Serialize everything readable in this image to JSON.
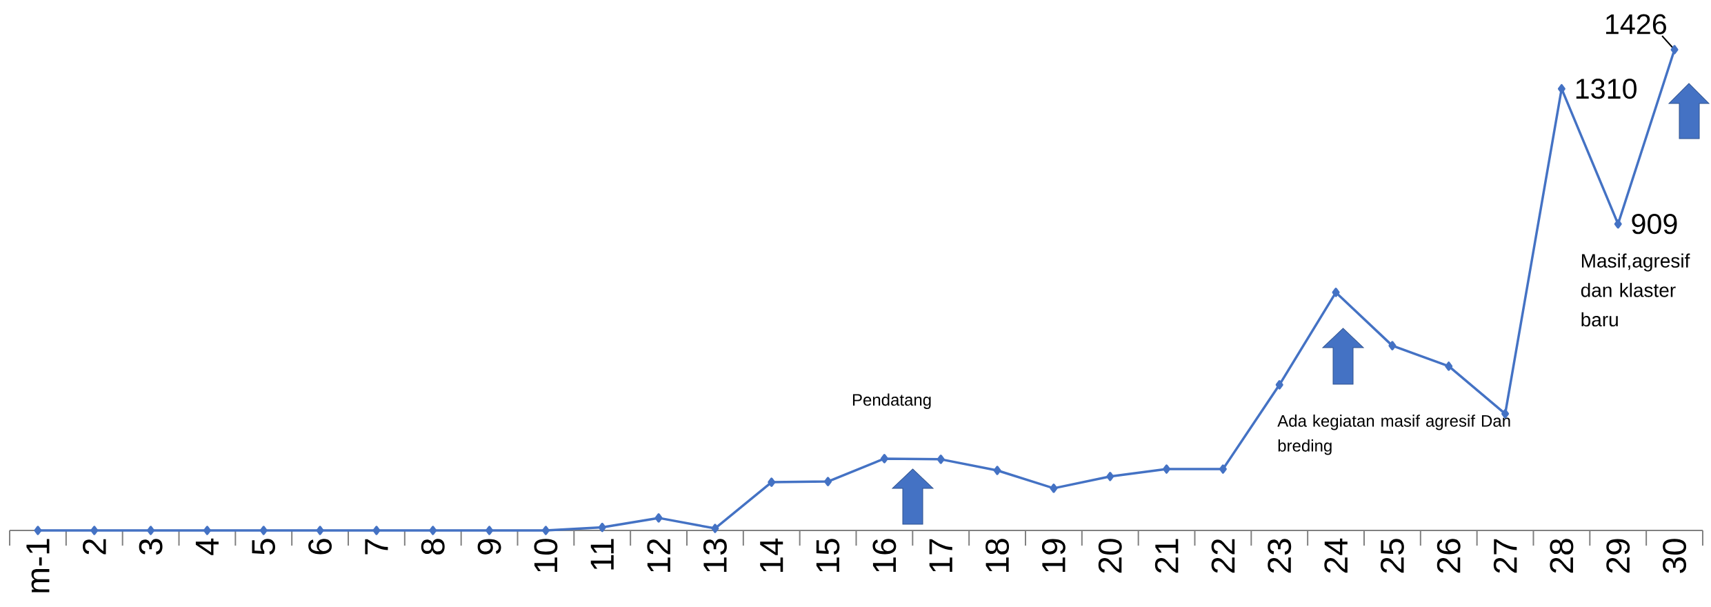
{
  "chart_data": {
    "type": "line",
    "categories": [
      "m-1",
      "2",
      "3",
      "4",
      "5",
      "6",
      "7",
      "8",
      "9",
      "10",
      "11",
      "12",
      "13",
      "14",
      "15",
      "16",
      "17",
      "18",
      "19",
      "20",
      "21",
      "22",
      "23",
      "24",
      "25",
      "26",
      "27",
      "28",
      "29",
      "30"
    ],
    "values": [
      0,
      0,
      0,
      0,
      0,
      0,
      0,
      0,
      0,
      0,
      9,
      37,
      6,
      143,
      145,
      213,
      211,
      178,
      125,
      160,
      182,
      182,
      432,
      706,
      548,
      487,
      346,
      1310,
      909,
      1426
    ],
    "value_labels": [
      null,
      null,
      null,
      null,
      null,
      null,
      null,
      null,
      null,
      null,
      null,
      null,
      null,
      null,
      null,
      null,
      null,
      null,
      null,
      null,
      null,
      null,
      null,
      null,
      null,
      null,
      null,
      "1310",
      "909",
      "1426"
    ],
    "color": "#4472c4",
    "marker": "diamond",
    "annotations": [
      "Pendatang",
      "Ada kegiatan masif agresif Dan breding",
      "Masif,agresif dan klaster baru"
    ]
  }
}
